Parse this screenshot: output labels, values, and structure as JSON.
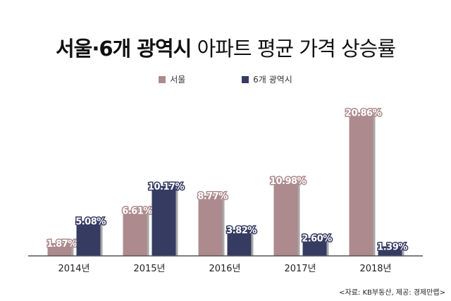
{
  "chart_data": {
    "type": "bar",
    "title_bold": "서울·6개 광역시",
    "title_rest": "아파트 평균 가격 상승률",
    "categories": [
      "2014년",
      "2015년",
      "2016년",
      "2017년",
      "2018년"
    ],
    "series": [
      {
        "name": "서울",
        "color": "#ad8a8d",
        "values": [
          1.87,
          6.61,
          8.77,
          10.98,
          20.86
        ]
      },
      {
        "name": "6개 광역시",
        "color": "#363b62",
        "values": [
          5.08,
          10.17,
          3.82,
          2.6,
          1.39
        ]
      }
    ],
    "data_labels": [
      [
        "1.87%",
        "6.61%",
        "8.77%",
        "10.98%",
        "20.86%"
      ],
      [
        "5.08%",
        "10.17%",
        "3.82%",
        "2.60%",
        "1.39%"
      ]
    ],
    "legend_position": "top",
    "grid": false,
    "ylim": [
      0,
      21
    ]
  },
  "source": "<자료: KB부동산, 제공: 경제만랩>"
}
